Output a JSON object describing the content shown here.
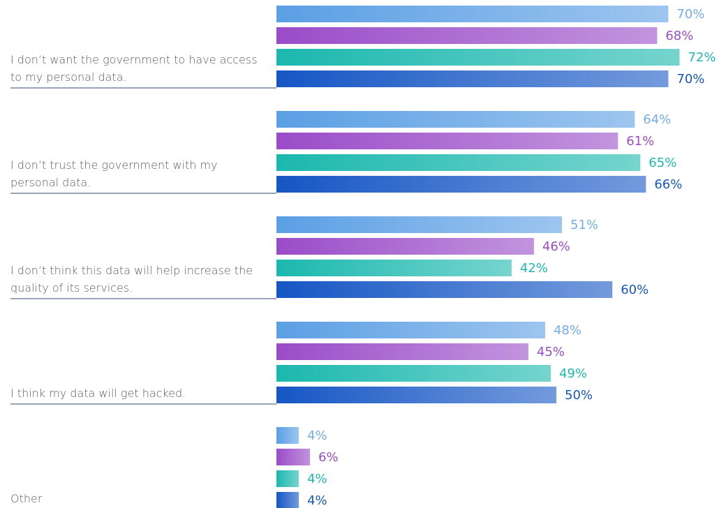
{
  "chart_data": {
    "type": "bar",
    "orientation": "horizontal",
    "categories": [
      "I don’t want the government to have access to my personal data.",
      "I don’t trust the government with my personal data.",
      "I don’t think this data will help increase the quality of its services.",
      "I think my data will get hacked.",
      "Other"
    ],
    "series": [
      {
        "color": "#5b9fe4",
        "values": [
          70,
          64,
          51,
          48,
          4
        ],
        "value_labels": [
          "70%",
          "64%",
          "51%",
          "48%",
          "4%"
        ]
      },
      {
        "color": "#9a4cc8",
        "values": [
          68,
          61,
          46,
          45,
          6
        ],
        "value_labels": [
          "68%",
          "61%",
          "46%",
          "45%",
          "6%"
        ]
      },
      {
        "color": "#1bb8ae",
        "values": [
          72,
          65,
          42,
          49,
          4
        ],
        "value_labels": [
          "72%",
          "65%",
          "42%",
          "49%",
          "4%"
        ]
      },
      {
        "color": "#1656c4",
        "values": [
          70,
          66,
          60,
          50,
          4
        ],
        "value_labels": [
          "70%",
          "66%",
          "60%",
          "50%",
          "4%"
        ]
      }
    ]
  }
}
